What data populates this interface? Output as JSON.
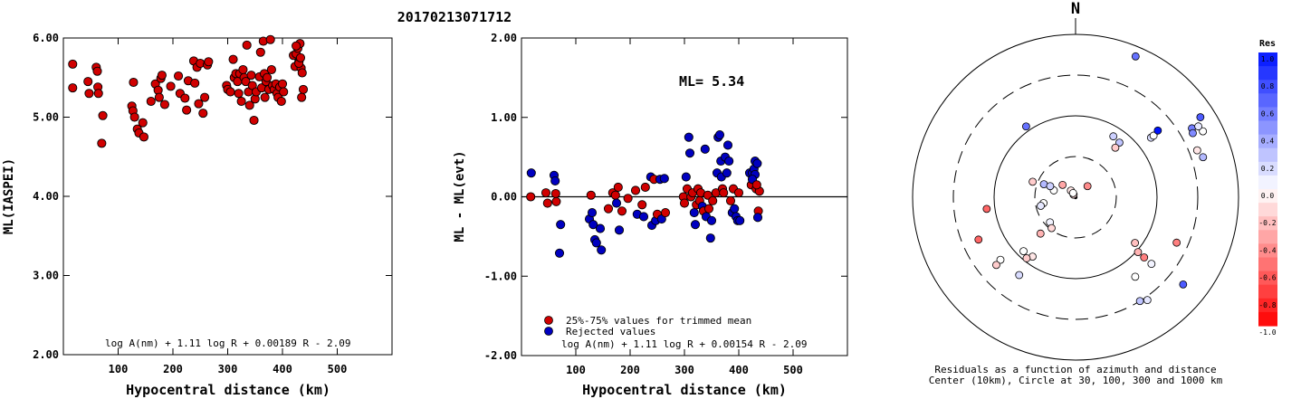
{
  "title": "20170213071712",
  "colors": {
    "accepted": "#d00000",
    "rejected": "#0000c0"
  },
  "chart_data": [
    {
      "type": "scatter",
      "panel": "magnitude-vs-distance",
      "xlabel": "Hypocentral distance (km)",
      "ylabel": "ML(IASPEI)",
      "xlim": [
        0,
        600
      ],
      "ylim": [
        2.0,
        6.0
      ],
      "x_ticks": [
        "100",
        "200",
        "300",
        "400",
        "500"
      ],
      "y_ticks": [
        "2.00",
        "3.00",
        "4.00",
        "5.00",
        "6.00"
      ],
      "formula": "log A(nm) + 1.11 log R + 0.00189 R - 2.09",
      "points": [
        [
          17,
          5.67
        ],
        [
          17,
          5.37
        ],
        [
          45,
          5.45
        ],
        [
          47,
          5.3
        ],
        [
          60,
          5.63
        ],
        [
          62,
          5.58
        ],
        [
          63,
          5.38
        ],
        [
          64,
          5.3
        ],
        [
          72,
          5.02
        ],
        [
          70,
          4.67
        ],
        [
          128,
          5.44
        ],
        [
          125,
          5.14
        ],
        [
          127,
          5.08
        ],
        [
          130,
          5.0
        ],
        [
          135,
          4.85
        ],
        [
          138,
          4.8
        ],
        [
          145,
          4.93
        ],
        [
          147,
          4.75
        ],
        [
          160,
          5.2
        ],
        [
          168,
          5.42
        ],
        [
          173,
          5.34
        ],
        [
          175,
          5.25
        ],
        [
          178,
          5.49
        ],
        [
          180,
          5.53
        ],
        [
          185,
          5.16
        ],
        [
          196,
          5.39
        ],
        [
          210,
          5.52
        ],
        [
          213,
          5.3
        ],
        [
          222,
          5.24
        ],
        [
          225,
          5.09
        ],
        [
          228,
          5.46
        ],
        [
          238,
          5.71
        ],
        [
          240,
          5.43
        ],
        [
          244,
          5.63
        ],
        [
          247,
          5.17
        ],
        [
          250,
          5.68
        ],
        [
          255,
          5.05
        ],
        [
          258,
          5.25
        ],
        [
          263,
          5.66
        ],
        [
          265,
          5.7
        ],
        [
          298,
          5.4
        ],
        [
          300,
          5.35
        ],
        [
          305,
          5.32
        ],
        [
          310,
          5.73
        ],
        [
          312,
          5.5
        ],
        [
          315,
          5.55
        ],
        [
          318,
          5.45
        ],
        [
          320,
          5.3
        ],
        [
          322,
          5.55
        ],
        [
          325,
          5.2
        ],
        [
          328,
          5.6
        ],
        [
          330,
          5.5
        ],
        [
          333,
          5.45
        ],
        [
          335,
          5.91
        ],
        [
          338,
          5.32
        ],
        [
          340,
          5.15
        ],
        [
          343,
          5.53
        ],
        [
          345,
          5.4
        ],
        [
          348,
          4.96
        ],
        [
          350,
          5.23
        ],
        [
          352,
          5.32
        ],
        [
          358,
          5.51
        ],
        [
          360,
          5.82
        ],
        [
          362,
          5.37
        ],
        [
          365,
          5.96
        ],
        [
          367,
          5.55
        ],
        [
          368,
          5.25
        ],
        [
          370,
          5.45
        ],
        [
          372,
          5.5
        ],
        [
          375,
          5.35
        ],
        [
          378,
          5.98
        ],
        [
          380,
          5.6
        ],
        [
          382,
          5.4
        ],
        [
          385,
          5.35
        ],
        [
          388,
          5.42
        ],
        [
          390,
          5.3
        ],
        [
          392,
          5.25
        ],
        [
          395,
          5.38
        ],
        [
          398,
          5.2
        ],
        [
          400,
          5.42
        ],
        [
          402,
          5.32
        ],
        [
          420,
          5.78
        ],
        [
          423,
          5.64
        ],
        [
          425,
          5.8
        ],
        [
          428,
          5.87
        ],
        [
          430,
          5.7
        ],
        [
          432,
          5.93
        ],
        [
          434,
          5.62
        ],
        [
          436,
          5.56
        ],
        [
          438,
          5.35
        ],
        [
          435,
          5.25
        ],
        [
          430,
          5.68
        ],
        [
          425,
          5.9
        ],
        [
          433,
          5.75
        ]
      ]
    },
    {
      "type": "scatter",
      "panel": "residual-vs-distance",
      "xlabel": "Hypocentral distance (km)",
      "ylabel": "ML - ML(evt)",
      "xlim": [
        0,
        600
      ],
      "ylim": [
        -2.0,
        2.0
      ],
      "x_ticks": [
        "100",
        "200",
        "300",
        "400",
        "500"
      ],
      "y_ticks": [
        "-2.00",
        "-1.00",
        "0.00",
        "1.00",
        "2.00"
      ],
      "ml_label": "ML= 5.34",
      "legend": [
        "25%-75% values for trimmed mean",
        "Rejected values"
      ],
      "formula": "log A(nm) + 1.11 log R + 0.00154 R - 2.09",
      "reference_line": 0.0,
      "points": [
        [
          17,
          0.0,
          "r"
        ],
        [
          18,
          0.3,
          "b"
        ],
        [
          45,
          0.05,
          "r"
        ],
        [
          48,
          -0.08,
          "r"
        ],
        [
          60,
          0.27,
          "b"
        ],
        [
          62,
          0.2,
          "b"
        ],
        [
          63,
          0.04,
          "r"
        ],
        [
          64,
          -0.06,
          "r"
        ],
        [
          72,
          -0.35,
          "b"
        ],
        [
          70,
          -0.71,
          "b"
        ],
        [
          125,
          -0.28,
          "b"
        ],
        [
          128,
          0.02,
          "r"
        ],
        [
          130,
          -0.2,
          "b"
        ],
        [
          132,
          -0.35,
          "b"
        ],
        [
          135,
          -0.54,
          "b"
        ],
        [
          138,
          -0.58,
          "b"
        ],
        [
          145,
          -0.4,
          "b"
        ],
        [
          147,
          -0.67,
          "b"
        ],
        [
          160,
          -0.15,
          "r"
        ],
        [
          168,
          0.05,
          "r"
        ],
        [
          173,
          0.02,
          "r"
        ],
        [
          175,
          -0.08,
          "b"
        ],
        [
          178,
          0.12,
          "r"
        ],
        [
          180,
          -0.42,
          "b"
        ],
        [
          185,
          -0.18,
          "r"
        ],
        [
          196,
          -0.02,
          "r"
        ],
        [
          210,
          0.08,
          "r"
        ],
        [
          213,
          -0.22,
          "b"
        ],
        [
          222,
          -0.1,
          "r"
        ],
        [
          225,
          -0.25,
          "b"
        ],
        [
          228,
          0.12,
          "r"
        ],
        [
          238,
          0.25,
          "b"
        ],
        [
          240,
          -0.36,
          "b"
        ],
        [
          244,
          0.22,
          "r"
        ],
        [
          247,
          -0.3,
          "b"
        ],
        [
          250,
          -0.22,
          "r"
        ],
        [
          255,
          0.22,
          "b"
        ],
        [
          258,
          -0.28,
          "b"
        ],
        [
          263,
          0.23,
          "b"
        ],
        [
          265,
          -0.2,
          "r"
        ],
        [
          298,
          0.0,
          "r"
        ],
        [
          300,
          -0.08,
          "r"
        ],
        [
          303,
          0.25,
          "b"
        ],
        [
          305,
          0.1,
          "r"
        ],
        [
          308,
          0.75,
          "b"
        ],
        [
          310,
          0.55,
          "b"
        ],
        [
          312,
          0.0,
          "r"
        ],
        [
          315,
          0.05,
          "r"
        ],
        [
          318,
          -0.2,
          "b"
        ],
        [
          320,
          -0.35,
          "b"
        ],
        [
          322,
          -0.1,
          "r"
        ],
        [
          325,
          0.1,
          "r"
        ],
        [
          328,
          -0.05,
          "r"
        ],
        [
          330,
          0.05,
          "r"
        ],
        [
          333,
          -0.12,
          "b"
        ],
        [
          335,
          -0.18,
          "r"
        ],
        [
          338,
          0.6,
          "b"
        ],
        [
          340,
          -0.25,
          "b"
        ],
        [
          343,
          0.02,
          "r"
        ],
        [
          345,
          -0.15,
          "r"
        ],
        [
          348,
          -0.52,
          "b"
        ],
        [
          350,
          -0.3,
          "b"
        ],
        [
          352,
          -0.05,
          "r"
        ],
        [
          358,
          0.05,
          "r"
        ],
        [
          360,
          0.3,
          "b"
        ],
        [
          362,
          0.75,
          "b"
        ],
        [
          365,
          0.78,
          "b"
        ],
        [
          367,
          0.45,
          "b"
        ],
        [
          368,
          0.25,
          "b"
        ],
        [
          370,
          0.1,
          "r"
        ],
        [
          372,
          0.05,
          "r"
        ],
        [
          375,
          0.5,
          "b"
        ],
        [
          378,
          0.3,
          "b"
        ],
        [
          380,
          0.65,
          "b"
        ],
        [
          382,
          0.45,
          "b"
        ],
        [
          385,
          -0.05,
          "r"
        ],
        [
          388,
          -0.2,
          "b"
        ],
        [
          390,
          0.1,
          "r"
        ],
        [
          392,
          -0.15,
          "b"
        ],
        [
          395,
          -0.25,
          "b"
        ],
        [
          398,
          -0.3,
          "b"
        ],
        [
          400,
          0.05,
          "r"
        ],
        [
          402,
          -0.3,
          "b"
        ],
        [
          420,
          0.3,
          "b"
        ],
        [
          423,
          0.15,
          "r"
        ],
        [
          425,
          0.3,
          "b"
        ],
        [
          428,
          0.35,
          "b"
        ],
        [
          430,
          0.45,
          "b"
        ],
        [
          432,
          0.1,
          "r"
        ],
        [
          434,
          0.42,
          "b"
        ],
        [
          436,
          -0.18,
          "r"
        ],
        [
          438,
          0.07,
          "r"
        ],
        [
          435,
          -0.26,
          "b"
        ],
        [
          430,
          0.28,
          "b"
        ],
        [
          425,
          0.22,
          "b"
        ],
        [
          433,
          0.15,
          "r"
        ]
      ]
    },
    {
      "type": "scatter",
      "panel": "azimuthal-residual-map",
      "north_label": "N",
      "caption_line1": "Residuals as a function of azimuth and distance",
      "caption_line2": "Center (10km), Circle at 30, 100, 300 and 1000 km",
      "colorbar_title": "Res",
      "colorbar_ticks": [
        "1.0",
        "0.8",
        "0.6",
        "0.4",
        "0.2",
        "0.0",
        "-0.2",
        "-0.4",
        "-0.6",
        "-0.8",
        "-1.0"
      ],
      "stations": [
        [
          0.46,
          -0.72,
          0.0
        ],
        [
          0.45,
          -0.81,
          -0.1
        ],
        [
          0.48,
          -0.78,
          -0.2
        ],
        [
          0.22,
          -0.7,
          0.05
        ],
        [
          0.24,
          -0.79,
          -0.15
        ],
        [
          0.31,
          -0.72,
          -0.3
        ],
        [
          0.2,
          -0.18,
          0.0
        ],
        [
          0.22,
          -0.24,
          0.1
        ],
        [
          0.28,
          0.34,
          -0.2
        ],
        [
          0.14,
          0.3,
          0.0
        ],
        [
          0.21,
          0.38,
          0.3
        ],
        [
          0.17,
          0.4,
          0.2
        ],
        [
          0.02,
          0.8,
          -0.15
        ],
        [
          0.05,
          0.82,
          -0.1
        ],
        [
          0.03,
          0.86,
          0.0
        ],
        [
          0.1,
          0.68,
          -0.45
        ],
        [
          0.11,
          0.69,
          -0.35
        ],
        [
          0.43,
          0.78,
          0.25
        ],
        [
          0.44,
          0.85,
          0.2
        ],
        [
          0.53,
          0.82,
          0.6
        ],
        [
          0.39,
          0.78,
          -0.2
        ],
        [
          0.59,
          0.62,
          0.15
        ],
        [
          0.61,
          0.62,
          0.0
        ],
        [
          0.65,
          0.63,
          1.0
        ],
        [
          0.83,
          0.51,
          0.55
        ],
        [
          0.82,
          0.48,
          0.5
        ],
        [
          0.8,
          0.36,
          -0.1
        ],
        [
          0.82,
          0.3,
          0.3
        ],
        [
          0.88,
          0.46,
          0.0
        ],
        [
          0.87,
          0.5,
          0.1
        ],
        [
          0.91,
          0.54,
          0.7
        ],
        [
          0.94,
          0.92,
          0.6
        ],
        [
          0.55,
          -0.13,
          -0.6
        ],
        [
          0.85,
          -0.63,
          0.7
        ],
        [
          0.77,
          -0.82,
          0.1
        ],
        [
          0.75,
          -0.85,
          0.25
        ],
        [
          0.6,
          -0.64,
          0.0
        ],
        [
          0.62,
          -0.66,
          0.05
        ],
        [
          0.64,
          -0.65,
          -0.2
        ],
        [
          0.51,
          -0.66,
          -0.3
        ],
        [
          0.56,
          -0.66,
          -0.5
        ],
        [
          0.68,
          -0.41,
          -0.5
        ],
        [
          0.65,
          -0.4,
          -0.6
        ],
        [
          0.46,
          -0.61,
          -0.25
        ],
        [
          0.59,
          -0.81,
          0.15
        ],
        [
          0.61,
          -0.8,
          0.0
        ]
      ]
    }
  ]
}
